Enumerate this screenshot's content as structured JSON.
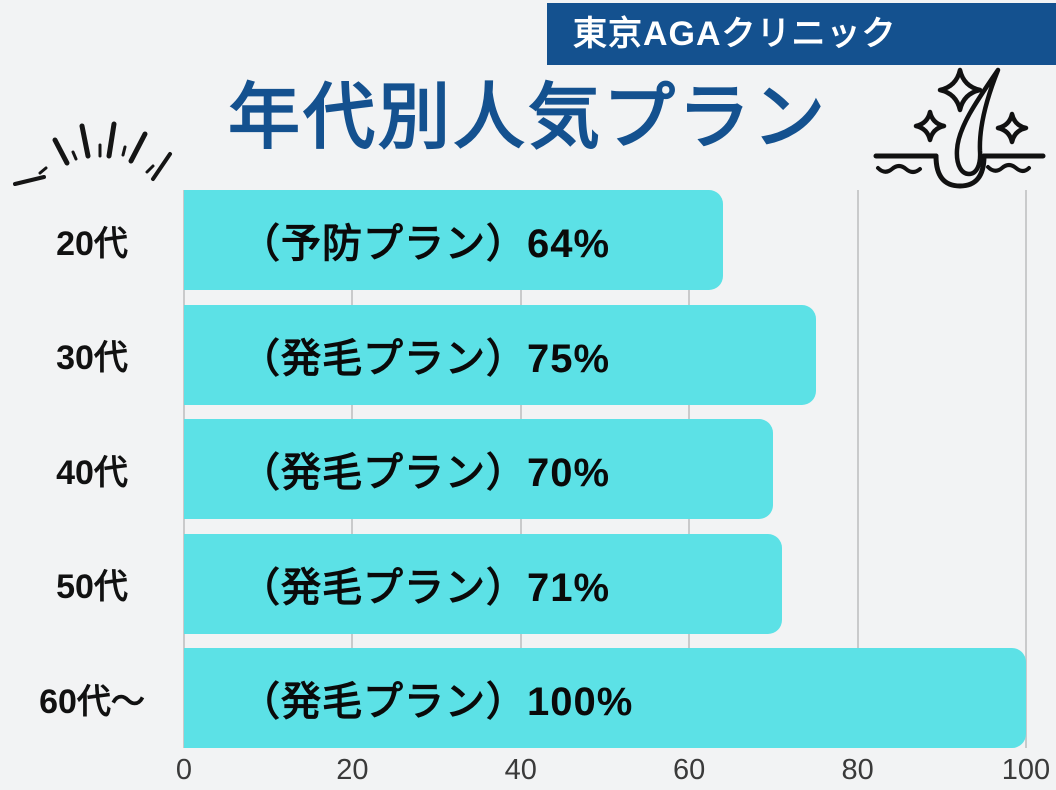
{
  "page": {
    "background_color": "#f2f3f4"
  },
  "header": {
    "badge_text": "東京AGAクリニック",
    "badge_bg_color": "#14518f",
    "badge_text_color": "#ffffff",
    "title": "年代別人気プラン",
    "title_color": "#14518f"
  },
  "icons": {
    "rays": "rays-doodle",
    "follicle": "hair-follicle-with-sparkles"
  },
  "chart_data": {
    "type": "bar",
    "orientation": "horizontal",
    "title": "年代別人気プラン",
    "categories": [
      "20代",
      "30代",
      "40代",
      "50代",
      "60代〜"
    ],
    "values": [
      64,
      75,
      70,
      71,
      100
    ],
    "bar_labels": [
      "（予防プラン）64%",
      "（発毛プラン）75%",
      "（発毛プラン）70%",
      "（発毛プラン）71%",
      "（発毛プラン）100%"
    ],
    "x_ticks": [
      "0",
      "20",
      "40",
      "60",
      "80",
      "100"
    ],
    "x_tick_values": [
      0,
      20,
      40,
      60,
      80,
      100
    ],
    "xlim": [
      0,
      100
    ],
    "grid": true,
    "gridline_color": "#c9cacb",
    "bar_color": "#5ce1e6",
    "label_color": "#0a0a0a",
    "legend": "none"
  }
}
